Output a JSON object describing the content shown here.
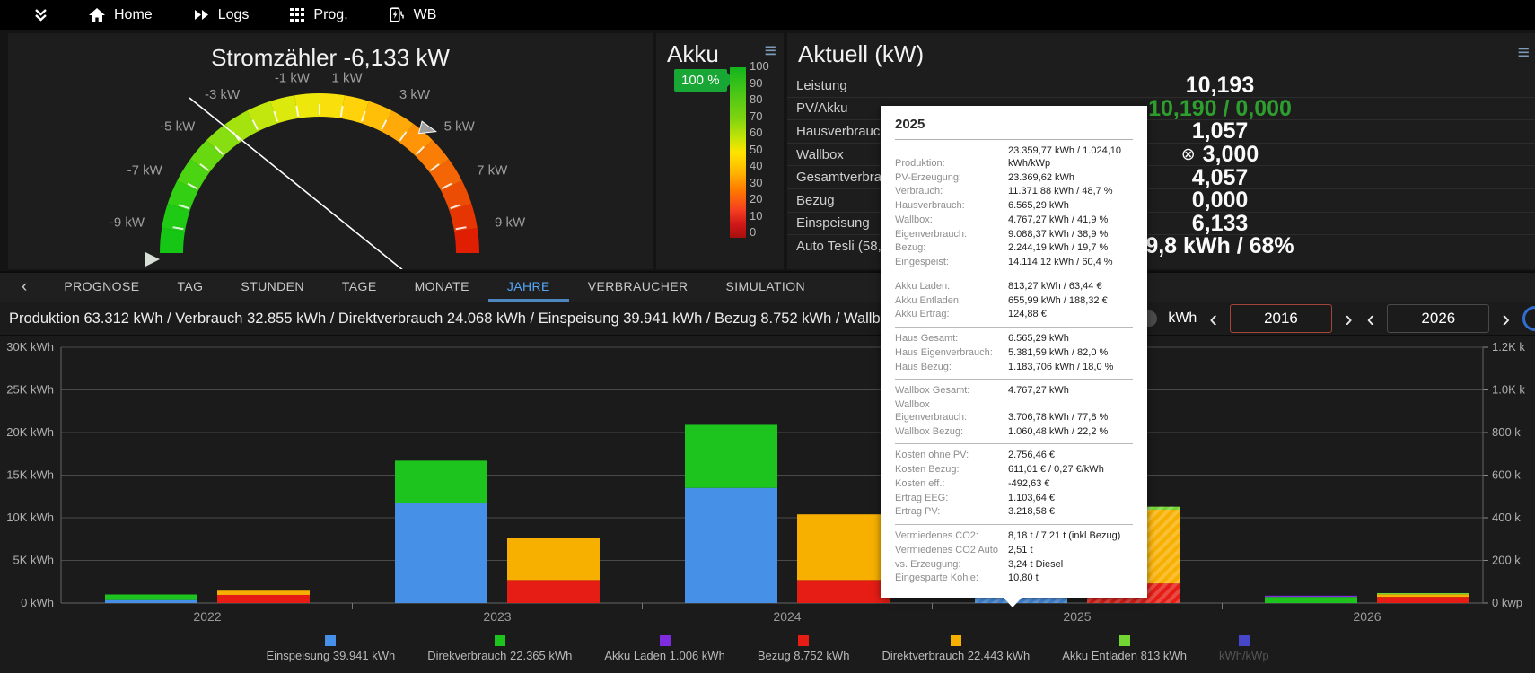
{
  "nav": {
    "items": [
      {
        "icon": "double-chevron-down-icon",
        "label": ""
      },
      {
        "icon": "home-icon",
        "label": "Home"
      },
      {
        "icon": "fast-forward-icon",
        "label": "Logs"
      },
      {
        "icon": "grid-icon",
        "label": "Prog."
      },
      {
        "icon": "ev-charger-icon",
        "label": "WB"
      }
    ]
  },
  "gauge": {
    "title": "Stromzähler -6,133 kW",
    "value_kw": -6.133,
    "tick_labels": [
      {
        "v": -9,
        "t": "-9 kW"
      },
      {
        "v": -7,
        "t": "-7 kW"
      },
      {
        "v": -5,
        "t": "-5 kW"
      },
      {
        "v": -3,
        "t": "-3 kW"
      },
      {
        "v": -1,
        "t": "-1 kW"
      },
      {
        "v": 1,
        "t": "1 kW"
      },
      {
        "v": 3,
        "t": "3 kW"
      },
      {
        "v": 5,
        "t": "5 kW"
      },
      {
        "v": 7,
        "t": "7 kW"
      },
      {
        "v": 9,
        "t": "9 kW"
      }
    ],
    "arc_colors": [
      "#15c615",
      "#1fca14",
      "#32cf13",
      "#4bd412",
      "#68d911",
      "#87de10",
      "#a5e30f",
      "#c2e70e",
      "#dbe90d",
      "#eee70c",
      "#f9df0b",
      "#ffd20a",
      "#ffbf09",
      "#ffaa08",
      "#ff9407",
      "#fa7d06",
      "#f36505",
      "#ec4d04",
      "#e53503",
      "#df1e02"
    ],
    "marker_value_kw": 4.7
  },
  "akku": {
    "title": "Akku",
    "badge": "100 %",
    "scale": [
      "100",
      "90",
      "80",
      "70",
      "60",
      "50",
      "40",
      "30",
      "20",
      "10",
      "0"
    ]
  },
  "aktuell": {
    "title": "Aktuell (kW)",
    "rows": [
      {
        "label": "Leistung",
        "value": "10,193",
        "green": false,
        "icon": ""
      },
      {
        "label": "PV/Akku",
        "value": "10,190 / 0,000",
        "green": true,
        "icon": ""
      },
      {
        "label": "Hausverbrauch",
        "value": "1,057",
        "green": false,
        "icon": ""
      },
      {
        "label": "Wallbox",
        "value": "3,000",
        "green": false,
        "icon": "circle-x-icon"
      },
      {
        "label": "Gesamtverbrauch",
        "value": "4,057",
        "green": false,
        "icon": ""
      },
      {
        "label": "Bezug",
        "value": "0,000",
        "green": false,
        "icon": ""
      },
      {
        "label": "Einspeisung",
        "value": "6,133",
        "green": false,
        "icon": ""
      },
      {
        "label": "Auto Tesli (58,50",
        "value": "9,8 kWh / 68%",
        "green": false,
        "icon": ""
      }
    ]
  },
  "tabs": {
    "back": "‹",
    "items": [
      "PROGNOSE",
      "TAG",
      "STUNDEN",
      "TAGE",
      "MONATE",
      "JAHRE",
      "VERBRAUCHER",
      "SIMULATION"
    ],
    "active": "JAHRE"
  },
  "summary": {
    "text": "Produktion 63.312 kWh / Verbrauch 32.855 kWh / Direktverbrauch 24.068 kWh / Einspeisung 39.941 kWh / Bezug 8.752 kWh / Wallbox 14.309 kWh / Akku Laden"
  },
  "controls": {
    "unit_label": "kWh",
    "year_from": "2016",
    "year_to": "2026",
    "prev": "‹",
    "next": "›"
  },
  "tooltip": {
    "title": "2025",
    "groups": [
      [
        {
          "l": "Produktion:",
          "v": "23.359,77 kWh / 1.024,10 kWh/kWp"
        },
        {
          "l": "PV-Erzeugung:",
          "v": "23.369,62 kWh"
        },
        {
          "l": "Verbrauch:",
          "v": "11.371,88 kWh / 48,7 %"
        },
        {
          "l": "Hausverbrauch:",
          "v": "6.565,29 kWh"
        },
        {
          "l": "Wallbox:",
          "v": "4.767,27 kWh / 41,9 %"
        },
        {
          "l": "Eigenverbrauch:",
          "v": "9.088,37 kWh / 38,9 %"
        },
        {
          "l": "Bezug:",
          "v": "2.244,19 kWh / 19,7 %"
        },
        {
          "l": "Eingespeist:",
          "v": "14.114,12 kWh / 60,4 %"
        }
      ],
      [
        {
          "l": "Akku Laden:",
          "v": "813,27 kWh / 63,44 €"
        },
        {
          "l": "Akku Entladen:",
          "v": "655,99 kWh / 188,32 €"
        },
        {
          "l": "Akku Ertrag:",
          "v": "124,88 €"
        }
      ],
      [
        {
          "l": "Haus Gesamt:",
          "v": "6.565,29 kWh"
        },
        {
          "l": "Haus Eigenverbrauch:",
          "v": "5.381,59 kWh / 82,0 %"
        },
        {
          "l": "Haus Bezug:",
          "v": "1.183,706 kWh / 18,0 %"
        }
      ],
      [
        {
          "l": "Wallbox Gesamt:",
          "v": "4.767,27 kWh"
        },
        {
          "l": "Wallbox Eigenverbrauch:",
          "v": "3.706,78 kWh / 77,8 %"
        },
        {
          "l": "Wallbox Bezug:",
          "v": "1.060,48 kWh / 22,2 %"
        }
      ],
      [
        {
          "l": "Kosten ohne PV:",
          "v": "2.756,46 €"
        },
        {
          "l": "Kosten Bezug:",
          "v": "611,01 € / 0,27 €/kWh"
        },
        {
          "l": "Kosten eff.:",
          "v": "-492,63 €"
        },
        {
          "l": "Ertrag EEG:",
          "v": "1.103,64 €"
        },
        {
          "l": "Ertrag PV:",
          "v": "3.218,58 €"
        }
      ],
      [
        {
          "l": "Vermiedenes CO2:",
          "v": "8,18 t / 7,21 t (inkl Bezug)"
        },
        {
          "l": "Vermiedenes CO2 Auto",
          "v": "2,51 t"
        },
        {
          "l": "vs. Erzeugung:",
          "v": "3,24 t Diesel"
        },
        {
          "l": "Eingesparte Kohle:",
          "v": "10,80 t"
        }
      ]
    ]
  },
  "chart_data": {
    "type": "bar",
    "stacking": "grouped-stacked",
    "unit": "kWh",
    "categories": [
      "2022",
      "2023",
      "2024",
      "2025",
      "2026"
    ],
    "y_left": {
      "max_k": 30,
      "labels": [
        "30K kWh",
        "25K kWh",
        "20K kWh",
        "15K kWh",
        "10K kWh",
        "5K kWh",
        "0 kWh"
      ]
    },
    "y_right": {
      "labels": [
        "1.2K k",
        "1.0K k",
        "800 k",
        "600 k",
        "400 k",
        "200 k",
        "0 kwp"
      ]
    },
    "series_colors": {
      "einspeisung": "#4690e8",
      "direktverbrauch_pv": "#1dc41d",
      "bezug": "#e51d15",
      "direktverbrauch": "#f7b000",
      "akku_laden": "#7d2ce0",
      "akku_entladen": "#74d633",
      "kwh_kwp": "#4646c8"
    },
    "years": [
      {
        "year": "2022",
        "hatched": false,
        "production": [
          {
            "key": "einspeisung",
            "k": 0.35
          },
          {
            "key": "direktverbrauch_pv",
            "k": 0.65
          }
        ],
        "consumption": [
          {
            "key": "bezug",
            "k": 0.95
          },
          {
            "key": "direktverbrauch",
            "k": 0.5
          }
        ]
      },
      {
        "year": "2023",
        "hatched": false,
        "production": [
          {
            "key": "einspeisung",
            "k": 11.7
          },
          {
            "key": "direktverbrauch_pv",
            "k": 5.0
          }
        ],
        "consumption": [
          {
            "key": "bezug",
            "k": 2.7
          },
          {
            "key": "direktverbrauch",
            "k": 4.9
          }
        ]
      },
      {
        "year": "2024",
        "hatched": false,
        "production": [
          {
            "key": "einspeisung",
            "k": 13.5
          },
          {
            "key": "direktverbrauch_pv",
            "k": 7.4
          }
        ],
        "consumption": [
          {
            "key": "bezug",
            "k": 2.7
          },
          {
            "key": "direktverbrauch",
            "k": 7.7
          }
        ]
      },
      {
        "year": "2025",
        "hatched": true,
        "production": [
          {
            "key": "einspeisung",
            "k": 14.1
          },
          {
            "key": "direktverbrauch_pv",
            "k": 9.3
          }
        ],
        "consumption": [
          {
            "key": "bezug",
            "k": 2.3
          },
          {
            "key": "direktverbrauch",
            "k": 8.65
          },
          {
            "key": "akku_entladen",
            "k": 0.35
          }
        ]
      },
      {
        "year": "2026",
        "hatched": false,
        "production": [
          {
            "key": "direktverbrauch_pv",
            "k": 0.72
          },
          {
            "key": "akku_laden",
            "k": 0.14
          }
        ],
        "consumption": [
          {
            "key": "bezug",
            "k": 0.72
          },
          {
            "key": "direktverbrauch",
            "k": 0.3
          },
          {
            "key": "akku_entladen",
            "k": 0.14
          }
        ]
      }
    ],
    "legend": [
      {
        "key": "einspeisung",
        "label": "Einspeisung 39.941 kWh",
        "disabled": false
      },
      {
        "key": "direktverbrauch_pv",
        "label": "Direkverbrauch 22.365 kWh",
        "disabled": false
      },
      {
        "key": "akku_laden",
        "label": "Akku Laden 1.006 kWh",
        "disabled": false
      },
      {
        "key": "bezug",
        "label": "Bezug 8.752 kWh",
        "disabled": false
      },
      {
        "key": "direktverbrauch",
        "label": "Direktverbrauch 22.443 kWh",
        "disabled": false
      },
      {
        "key": "akku_entladen",
        "label": "Akku Entladen 813 kWh",
        "disabled": false
      },
      {
        "key": "kwh_kwp",
        "label": "kWh/kWp",
        "disabled": true
      }
    ]
  },
  "colors": {
    "accent_blue": "#56a6f5",
    "badge_green": "#18a634",
    "value_green": "#2e9e2e",
    "year_from_border": "#a8453a"
  }
}
